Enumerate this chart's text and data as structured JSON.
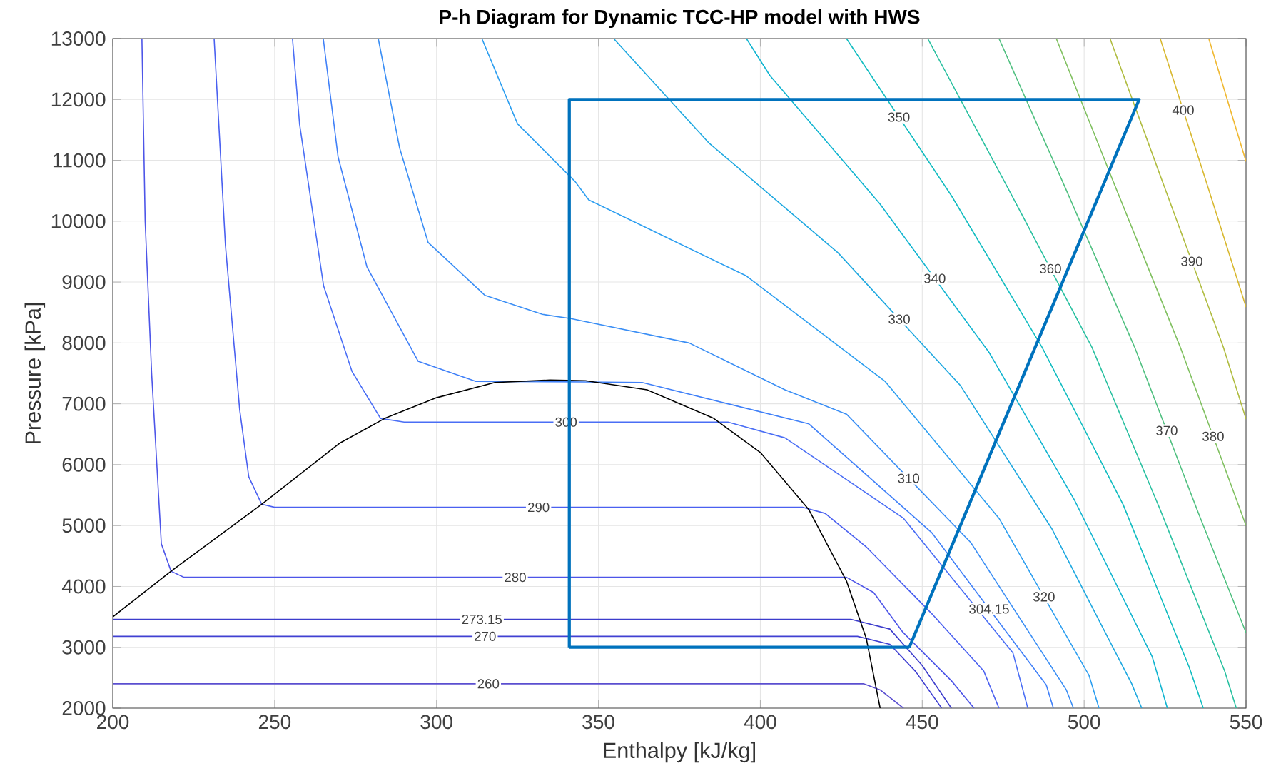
{
  "chart_data": {
    "type": "line",
    "title": "P-h Diagram for Dynamic TCC-HP model with HWS",
    "xlabel": "Enthalpy [kJ/kg]",
    "ylabel": "Pressure [kPa]",
    "xlim": [
      200,
      550
    ],
    "ylim": [
      2000,
      13000
    ],
    "xticks": [
      200,
      250,
      300,
      350,
      400,
      450,
      500,
      550
    ],
    "yticks": [
      2000,
      3000,
      4000,
      5000,
      6000,
      7000,
      8000,
      9000,
      10000,
      11000,
      12000,
      13000
    ],
    "grid": true,
    "marker": "none",
    "line_style": "solid",
    "series": [
      {
        "name": "260",
        "color": "#5b4fd0",
        "x": [
          200,
          432,
          437,
          444.2
        ],
        "values": [
          2400,
          2400,
          2300,
          2000
        ]
      },
      {
        "name": "270",
        "color": "#4040d2",
        "x": [
          200,
          430,
          440,
          448,
          456
        ],
        "values": [
          3180,
          3180,
          3050,
          2600,
          2000
        ]
      },
      {
        "name": "273.15",
        "color": "#3c3ccc",
        "x": [
          200,
          428,
          440,
          450,
          459
        ],
        "values": [
          3460,
          3460,
          3300,
          2700,
          2000
        ]
      },
      {
        "name": "280",
        "color": "#4d55e8",
        "x": [
          209,
          210,
          212,
          215,
          218,
          222,
          426.6,
          435,
          444,
          459,
          466
        ],
        "values": [
          13000,
          10000,
          7500,
          4700,
          4250,
          4150,
          4150,
          3900,
          3250,
          2450,
          2000
        ]
      },
      {
        "name": "290",
        "color": "#4a60f0",
        "x": [
          231.3,
          234.8,
          239.2,
          242,
          246,
          250,
          413,
          420,
          432.7,
          453,
          469,
          473.7
        ],
        "values": [
          13000,
          9600,
          6900,
          5800,
          5350,
          5300,
          5300,
          5200,
          4650,
          3550,
          2610,
          2000
        ]
      },
      {
        "name": "300",
        "color": "#4a6ef5",
        "x": [
          255.5,
          257.7,
          265.1,
          273.9,
          282.7,
          290,
          390,
          407.6,
          444.2,
          478,
          482.6
        ],
        "values": [
          13000,
          11590,
          8940,
          7530,
          6760,
          6700,
          6700,
          6440,
          5120,
          2910,
          2000
        ]
      },
      {
        "name": "304.15",
        "color": "#4080f8",
        "x": [
          265,
          269.6,
          278.5,
          294.3,
          312,
          346,
          363.5,
          390,
          415,
          453,
          488.3,
          490.5
        ],
        "values": [
          13000,
          11050,
          9250,
          7700,
          7370,
          7360,
          7350,
          7000,
          6670,
          4880,
          2380,
          2000
        ]
      },
      {
        "name": "310",
        "color": "#3a8ef5",
        "x": [
          282,
          288.6,
          297.4,
          315,
          332.7,
          341.5,
          378,
          407.6,
          426.6,
          465,
          494.5,
          496.7
        ],
        "values": [
          13000,
          11200,
          9650,
          8780,
          8470,
          8400,
          8000,
          7230,
          6830,
          4720,
          2300,
          2000
        ]
      },
      {
        "name": "320",
        "color": "#2c9ef0",
        "x": [
          314,
          325,
          342.8,
          347,
          395.7,
          438.5,
          473.7,
          501.5,
          504.6
        ],
        "values": [
          13000,
          11600,
          10650,
          10350,
          9100,
          7370,
          5120,
          2540,
          2000
        ]
      },
      {
        "name": "330",
        "color": "#1ea8e0",
        "x": [
          354.7,
          384,
          424,
          461.8,
          490,
          514.7,
          517.8
        ],
        "values": [
          13000,
          11290,
          9480,
          7300,
          4950,
          2400,
          2000
        ]
      },
      {
        "name": "340",
        "color": "#10b4d0",
        "x": [
          395.7,
          403,
          437,
          470.7,
          497,
          521,
          525.7
        ],
        "values": [
          13000,
          12390,
          10280,
          7840,
          5420,
          2850,
          2000
        ]
      },
      {
        "name": "350",
        "color": "#10bcc0",
        "x": [
          426.6,
          459,
          487,
          512,
          532.4,
          536.8
        ],
        "values": [
          13000,
          10420,
          7930,
          5350,
          2680,
          2000
        ]
      },
      {
        "name": "360",
        "color": "#28c0a0",
        "x": [
          451.7,
          476.8,
          502.4,
          523.5,
          543.4,
          547
        ],
        "values": [
          13000,
          10510,
          7930,
          5260,
          2610,
          2000
        ]
      },
      {
        "name": "370",
        "color": "#50c080",
        "x": [
          473.7,
          494.5,
          515.6,
          535.4,
          550
        ],
        "values": [
          13000,
          10510,
          7930,
          5190,
          3240
        ]
      },
      {
        "name": "380",
        "color": "#80c060",
        "x": [
          491.4,
          509,
          529.7,
          550
        ],
        "values": [
          13000,
          10650,
          7930,
          5000
        ]
      },
      {
        "name": "390",
        "color": "#b0bc40",
        "x": [
          508,
          523.5,
          543,
          550
        ],
        "values": [
          13000,
          10750,
          7930,
          6750
        ]
      },
      {
        "name": "400",
        "color": "#d8b830",
        "x": [
          523.5,
          537.7,
          550
        ],
        "values": [
          13000,
          10650,
          8590
        ]
      },
      {
        "color": "#f0b830",
        "x": [
          538.5,
          550
        ],
        "values": [
          13000,
          10980
        ]
      },
      {
        "color": "#000000",
        "x": [
          200,
          218,
          246,
          270,
          284,
          300,
          318,
          335,
          346,
          365,
          385.6,
          400,
          415,
          426.6,
          432.7,
          437
        ],
        "values": [
          3500,
          4250,
          5350,
          6350,
          6760,
          7100,
          7350,
          7390,
          7380,
          7230,
          6760,
          6200,
          5260,
          4090,
          3150,
          2000
        ]
      },
      {
        "color": "#0072bd",
        "x": [
          341,
          446
        ],
        "values": [
          3000,
          3000
        ]
      },
      {
        "color": "#0072bd",
        "x": [
          341,
          341,
          517,
          446
        ],
        "values": [
          3000,
          12000,
          12000,
          3000
        ]
      }
    ]
  }
}
